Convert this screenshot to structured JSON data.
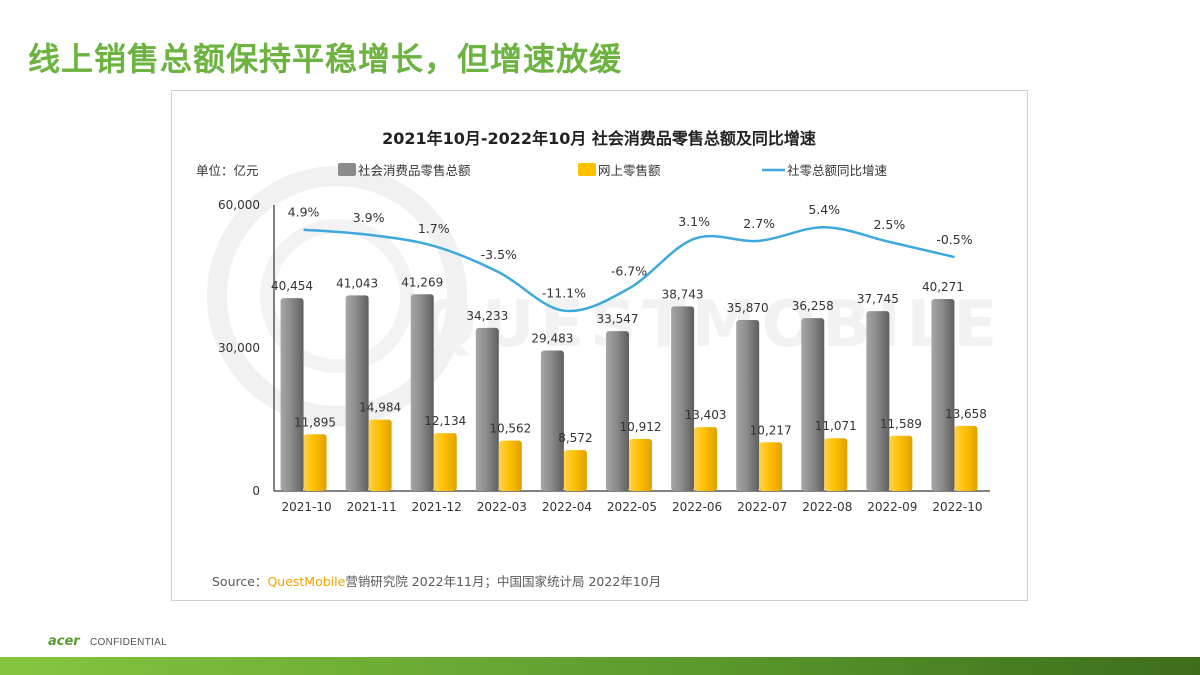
{
  "slide": {
    "title": "线上销售总额保持平稳增长，但增速放缓",
    "footer_brand": "acer",
    "footer_label": "CONFIDENTIAL",
    "colors": {
      "title": "#6cb33f",
      "bar_total": "#8c8c8c",
      "bar_online": "#ffc000",
      "line": "#3ea9dc",
      "footer_bar": "#5d9c2e"
    }
  },
  "chart_data": {
    "type": "bar",
    "title": "2021年10月-2022年10月 社会消费品零售总额及同比增速",
    "unit_label": "单位：亿元",
    "categories": [
      "2021-10",
      "2021-11",
      "2021-12",
      "2022-03",
      "2022-04",
      "2022-05",
      "2022-06",
      "2022-07",
      "2022-08",
      "2022-09",
      "2022-10"
    ],
    "series": [
      {
        "name": "社会消费品零售总额",
        "type": "bar",
        "color": "#8c8c8c",
        "values": [
          40454,
          41043,
          41269,
          34233,
          29483,
          33547,
          38743,
          35870,
          36258,
          37745,
          40271
        ],
        "labels": [
          "40,454",
          "41,043",
          "41,269",
          "34,233",
          "29,483",
          "33,547",
          "38,743",
          "35,870",
          "36,258",
          "37,745",
          "40,271"
        ]
      },
      {
        "name": "网上零售额",
        "type": "bar",
        "color": "#ffc000",
        "values": [
          11895,
          14984,
          12134,
          10562,
          8572,
          10912,
          13403,
          10217,
          11071,
          11589,
          13658
        ],
        "labels": [
          "11,895",
          "14,984",
          "12,134",
          "10,562",
          "8,572",
          "10,912",
          "13,403",
          "10,217",
          "11,071",
          "11,589",
          "13,658"
        ]
      },
      {
        "name": "社零总额同比增速",
        "type": "line",
        "color": "#3ea9dc",
        "values": [
          4.9,
          3.9,
          1.7,
          -3.5,
          -11.1,
          -6.7,
          3.1,
          2.7,
          5.4,
          2.5,
          -0.5
        ],
        "labels": [
          "4.9%",
          "3.9%",
          "1.7%",
          "-3.5%",
          "-11.1%",
          "-6.7%",
          "3.1%",
          "2.7%",
          "5.4%",
          "2.5%",
          "-0.5%"
        ]
      }
    ],
    "y_axis": {
      "ylim": [
        0,
        60000
      ],
      "ticks": [
        "0",
        "30,000",
        "60,000"
      ]
    },
    "y2_axis": {
      "hidden": true
    },
    "legend_position": "top",
    "grid": false,
    "source": {
      "prefix": "Source：",
      "brand": "QuestMobile",
      "rest": "营销研究院 2022年11月；中国国家统计局  2022年10月"
    },
    "watermark": "QUESTMOBILE"
  }
}
